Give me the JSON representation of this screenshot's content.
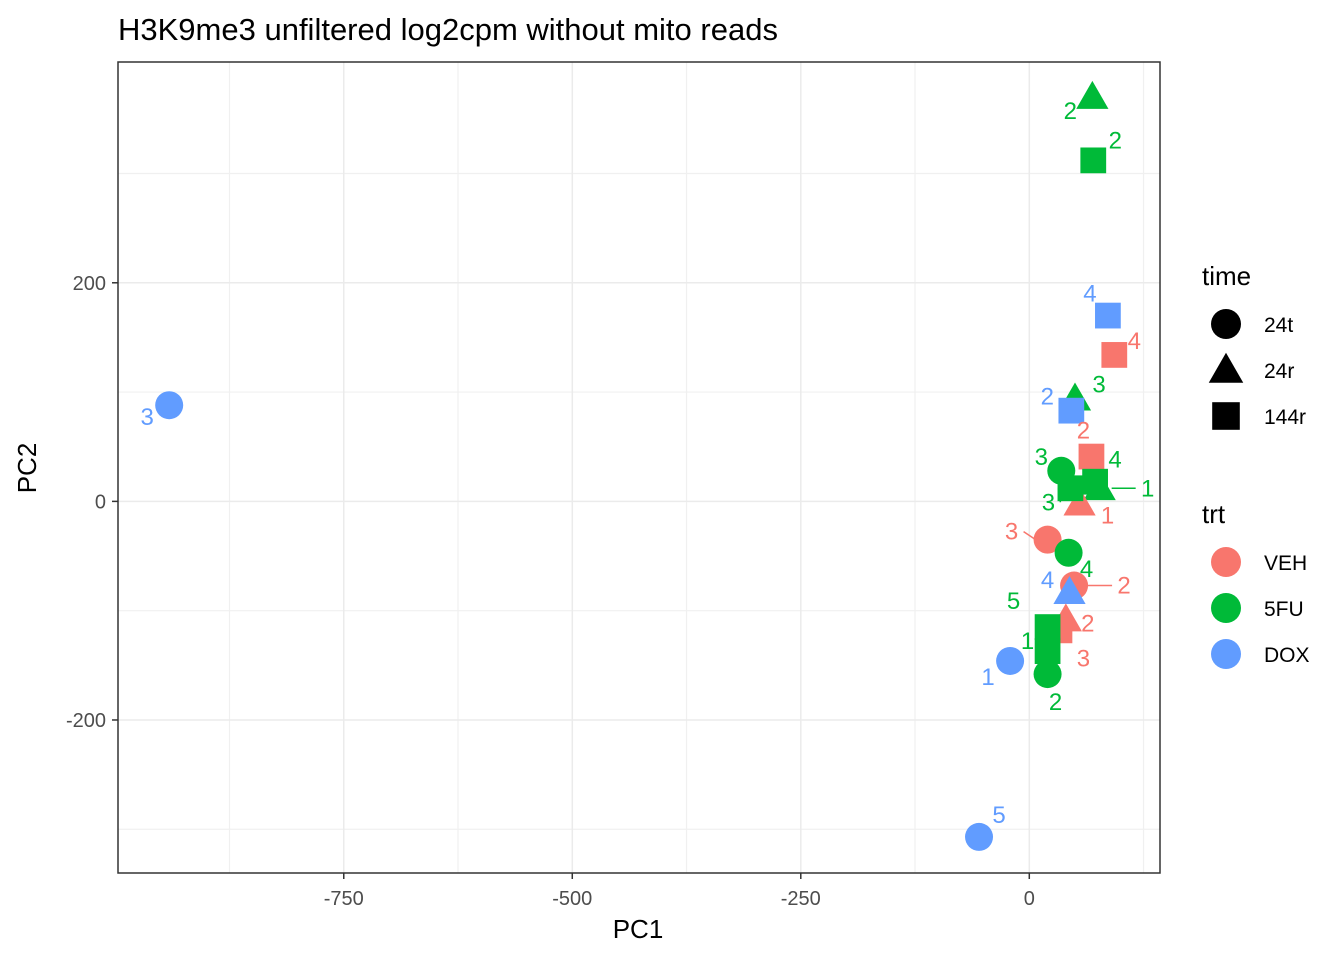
{
  "chart_data": {
    "type": "scatter",
    "title": "H3K9me3 unfiltered log2cpm without mito reads",
    "xlabel": "PC1",
    "ylabel": "PC2",
    "xlim": [
      -997,
      143
    ],
    "ylim": [
      -340,
      402
    ],
    "x_ticks": [
      {
        "value": -750,
        "label": "-750"
      },
      {
        "value": -500,
        "label": "-500"
      },
      {
        "value": -250,
        "label": "-250"
      },
      {
        "value": 0,
        "label": "0"
      }
    ],
    "y_ticks": [
      {
        "value": -200,
        "label": "-200"
      },
      {
        "value": 0,
        "label": "0"
      },
      {
        "value": 200,
        "label": "200"
      }
    ],
    "grid": true,
    "legends": [
      {
        "title": "time",
        "position": "right-top",
        "entries": [
          {
            "label": "24t",
            "shape": "circle"
          },
          {
            "label": "24r",
            "shape": "triangle"
          },
          {
            "label": "144r",
            "shape": "square"
          }
        ]
      },
      {
        "title": "trt",
        "position": "right-bottom",
        "entries": [
          {
            "label": "VEH",
            "color": "#F8766D"
          },
          {
            "label": "5FU",
            "color": "#00BA38"
          },
          {
            "label": "DOX",
            "color": "#619CFF"
          }
        ]
      }
    ],
    "colors": {
      "VEH": "#F8766D",
      "5FU": "#00BA38",
      "DOX": "#619CFF"
    },
    "points": [
      {
        "x": -941,
        "y": 88,
        "trt": "DOX",
        "time": "24t",
        "label": "3"
      },
      {
        "x": -55,
        "y": -307,
        "trt": "DOX",
        "time": "24t",
        "label": "5"
      },
      {
        "x": -21,
        "y": -146,
        "trt": "DOX",
        "time": "24t",
        "label": "1"
      },
      {
        "x": 20,
        "y": -35,
        "trt": "VEH",
        "time": "24t",
        "label": "3"
      },
      {
        "x": 49,
        "y": -77,
        "trt": "VEH",
        "time": "24t",
        "label": "2"
      },
      {
        "x": 35,
        "y": 28,
        "trt": "5FU",
        "time": "24t",
        "label": "3"
      },
      {
        "x": 43,
        "y": -47,
        "trt": "5FU",
        "time": "24t",
        "label": "4"
      },
      {
        "x": 20,
        "y": -158,
        "trt": "5FU",
        "time": "24t",
        "label": "2"
      },
      {
        "x": 69,
        "y": 370,
        "trt": "5FU",
        "time": "24r",
        "label": "2"
      },
      {
        "x": 50,
        "y": 94,
        "trt": "5FU",
        "time": "24r",
        "label": "3"
      },
      {
        "x": 77,
        "y": 12,
        "trt": "5FU",
        "time": "24r",
        "label": "1"
      },
      {
        "x": 55,
        "y": -2,
        "trt": "VEH",
        "time": "24r",
        "label": "1"
      },
      {
        "x": 44,
        "y": -83,
        "trt": "DOX",
        "time": "24r",
        "label": "4"
      },
      {
        "x": 40,
        "y": -108,
        "trt": "VEH",
        "time": "24r",
        "label": "2"
      },
      {
        "x": 70,
        "y": 312,
        "trt": "5FU",
        "time": "144r",
        "label": "2"
      },
      {
        "x": 86,
        "y": 170,
        "trt": "DOX",
        "time": "144r",
        "label": "4"
      },
      {
        "x": 93,
        "y": 134,
        "trt": "VEH",
        "time": "144r",
        "label": "4"
      },
      {
        "x": 46,
        "y": 83,
        "trt": "DOX",
        "time": "144r",
        "label": "2"
      },
      {
        "x": 68,
        "y": 41,
        "trt": "VEH",
        "time": "144r",
        "label": "2"
      },
      {
        "x": 72,
        "y": 18,
        "trt": "5FU",
        "time": "144r",
        "label": "4"
      },
      {
        "x": 45,
        "y": 12,
        "trt": "5FU",
        "time": "144r",
        "label": "3"
      },
      {
        "x": 33,
        "y": -118,
        "trt": "VEH",
        "time": "144r",
        "label": "3"
      },
      {
        "x": 20,
        "y": -115,
        "trt": "5FU",
        "time": "144r",
        "label": "5"
      },
      {
        "x": 20,
        "y": -137,
        "trt": "5FU",
        "time": "144r",
        "label": "1"
      }
    ]
  }
}
